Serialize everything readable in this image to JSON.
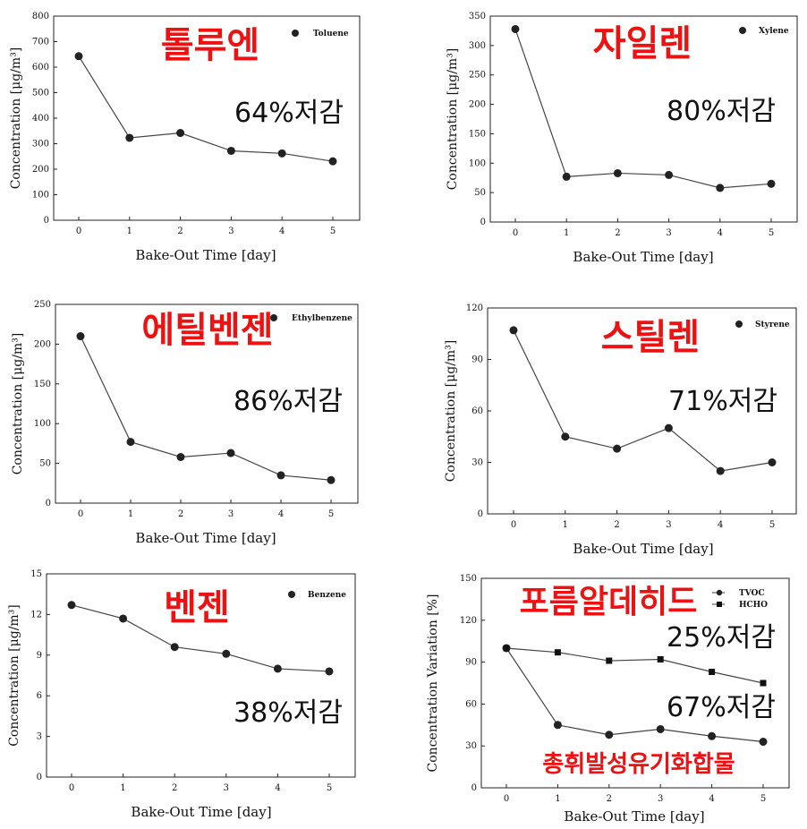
{
  "chart_data": [
    {
      "type": "line",
      "x": [
        0,
        1,
        2,
        3,
        4,
        5
      ],
      "xticks": [
        "0",
        "1",
        "2",
        "3",
        "4",
        "5"
      ],
      "xlabel": "Bake-Out Time [day]",
      "ylabel": "Concentration [μg/m³]",
      "ylim": [
        0,
        800
      ],
      "yticks": [
        0,
        100,
        200,
        300,
        400,
        500,
        600,
        700,
        800
      ],
      "legend": "Toluene",
      "series": [
        {
          "name": "Toluene",
          "marker": "circle",
          "values": [
            643,
            323,
            342,
            272,
            262,
            231
          ]
        }
      ],
      "annotation_title": "톨루엔",
      "annotation_reduction": "64%저감"
    },
    {
      "type": "line",
      "x": [
        0,
        1,
        2,
        3,
        4,
        5
      ],
      "xticks": [
        "0",
        "1",
        "2",
        "3",
        "4",
        "5"
      ],
      "xlabel": "Bake-Out Time [day]",
      "ylabel": "Concentration [μg/m³]",
      "ylim": [
        0,
        350
      ],
      "yticks": [
        0,
        50,
        100,
        150,
        200,
        250,
        300,
        350
      ],
      "legend": "Xylene",
      "series": [
        {
          "name": "Xylene",
          "marker": "circle",
          "values": [
            328,
            77,
            83,
            80,
            58,
            65
          ]
        }
      ],
      "annotation_title": "자일렌",
      "annotation_reduction": "80%저감"
    },
    {
      "type": "line",
      "x": [
        0,
        1,
        2,
        3,
        4,
        5
      ],
      "xticks": [
        "0",
        "1",
        "2",
        "3",
        "4",
        "5"
      ],
      "xlabel": "Bake-Out Time [day]",
      "ylabel": "Concentration [μg/m³]",
      "ylim": [
        0,
        250
      ],
      "yticks": [
        0,
        50,
        100,
        150,
        200,
        250
      ],
      "legend": "Ethylbenzene",
      "series": [
        {
          "name": "Ethylbenzene",
          "marker": "circle",
          "values": [
            210,
            77,
            58,
            63,
            35,
            29
          ]
        }
      ],
      "annotation_title": "에틸벤젠",
      "annotation_reduction": "86%저감"
    },
    {
      "type": "line",
      "x": [
        0,
        1,
        2,
        3,
        4,
        5
      ],
      "xticks": [
        "0",
        "1",
        "2",
        "3",
        "4",
        "5"
      ],
      "xlabel": "Bake-Out Time [day]",
      "ylabel": "Concentration [μg/m³]",
      "ylim": [
        0,
        120
      ],
      "yticks": [
        0,
        30,
        60,
        90,
        120
      ],
      "legend": "Styrene",
      "series": [
        {
          "name": "Styrene",
          "marker": "circle",
          "values": [
            107,
            45,
            38,
            50,
            25,
            30
          ]
        }
      ],
      "annotation_title": "스틸렌",
      "annotation_reduction": "71%저감"
    },
    {
      "type": "line",
      "x": [
        0,
        1,
        2,
        3,
        4,
        5
      ],
      "xticks": [
        "0",
        "1",
        "2",
        "3",
        "4",
        "5"
      ],
      "xlabel": "Bake-Out Time [day]",
      "ylabel": "Concentration [μg/m³]",
      "ylim": [
        0,
        15
      ],
      "yticks": [
        0,
        3,
        6,
        9,
        12,
        15
      ],
      "legend": "Benzene",
      "series": [
        {
          "name": "Benzene",
          "marker": "circle",
          "values": [
            12.7,
            11.7,
            9.6,
            9.1,
            8.0,
            7.8
          ]
        }
      ],
      "annotation_title": "벤젠",
      "annotation_reduction": "38%저감"
    },
    {
      "type": "line",
      "x": [
        0,
        1,
        2,
        3,
        4,
        5
      ],
      "xticks": [
        "0",
        "1",
        "2",
        "3",
        "4",
        "5"
      ],
      "xlabel": "Bake-Out Time [day]",
      "ylabel": "Concentration Variation [%]",
      "ylim": [
        0,
        150
      ],
      "yticks": [
        0,
        30,
        60,
        90,
        120,
        150
      ],
      "series": [
        {
          "name": "TVOC",
          "marker": "circle",
          "values": [
            100,
            45,
            38,
            42,
            37,
            33
          ]
        },
        {
          "name": "HCHO",
          "marker": "square",
          "values": [
            100,
            97,
            91,
            92,
            83,
            75
          ]
        }
      ],
      "annotation_title": "포름알데히드",
      "annotation_reduction": "25%저감",
      "annotation_reduction_2": "67%저감",
      "annotation_title_2": "총휘발성유기화합물"
    }
  ],
  "colors": {
    "annotation_red": "#ee1111",
    "text": "#111111",
    "line": "#444444"
  }
}
